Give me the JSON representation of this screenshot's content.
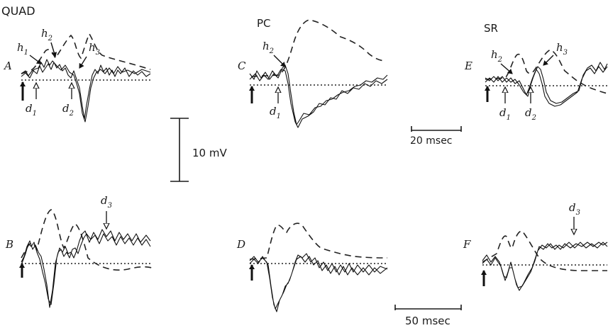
{
  "groups": {
    "quad": "QUAD",
    "pc": "PC",
    "sr": "SR"
  },
  "panels": {
    "a": "A",
    "b": "B",
    "c": "C",
    "d": "D",
    "e": "E",
    "f": "F"
  },
  "markers": {
    "h1": {
      "base": "h",
      "sub": "1"
    },
    "h2": {
      "base": "h",
      "sub": "2"
    },
    "h3": {
      "base": "h",
      "sub": "3"
    },
    "d1": {
      "base": "d",
      "sub": "1"
    },
    "d2": {
      "base": "d",
      "sub": "2"
    },
    "d3": {
      "base": "d",
      "sub": "3"
    }
  },
  "scale_bars": {
    "voltage": "10 mV",
    "time_short": "20 msec",
    "time_long": "50 msec"
  }
}
